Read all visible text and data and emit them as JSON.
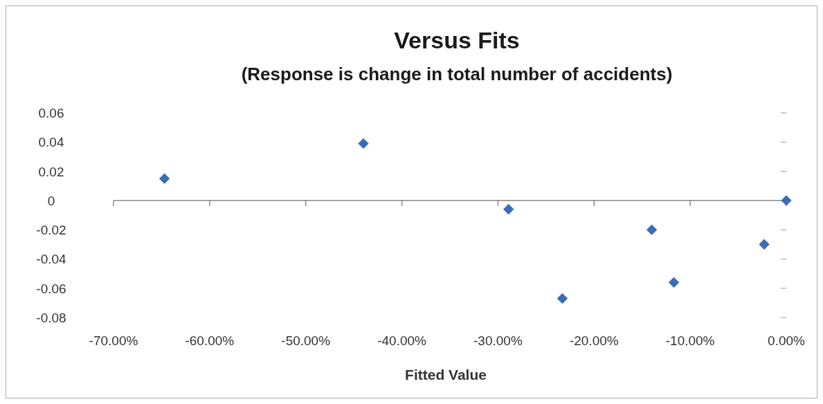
{
  "chart_data": {
    "type": "scatter",
    "title": "Versus Fits",
    "subtitle": "(Response is change in total number of accidents)",
    "xlabel": "Fitted Value",
    "x": [
      -64.7,
      -44.0,
      -28.9,
      -23.3,
      -14.0,
      -11.7,
      -2.3,
      0
    ],
    "series": [
      {
        "color": "#3d6cb6",
        "values": [
          0.015,
          0.039,
          -0.006,
          -0.067,
          -0.02,
          -0.056,
          -0.03,
          0
        ]
      }
    ],
    "marker": "diamond",
    "xlim": [
      -70,
      0
    ],
    "xticks": [
      {
        "value": -70,
        "label": "-70.00%"
      },
      {
        "value": -60,
        "label": "-60.00%"
      },
      {
        "value": -50,
        "label": "-50.00%"
      },
      {
        "value": -40,
        "label": "-40.00%"
      },
      {
        "value": -30,
        "label": "-30.00%"
      },
      {
        "value": -20,
        "label": "-20.00%"
      },
      {
        "value": -10,
        "label": "-10.00%"
      },
      {
        "value": 0,
        "label": "0.00%"
      }
    ],
    "ylim": [
      -0.08,
      0.06
    ],
    "yticks": [
      {
        "value": -0.08,
        "label": "-0.08"
      },
      {
        "value": -0.06,
        "label": "-0.06"
      },
      {
        "value": -0.04,
        "label": "-0.04"
      },
      {
        "value": -0.02,
        "label": "-0.02"
      },
      0,
      {
        "value": 0.02,
        "label": "0.02"
      },
      {
        "value": 0.04,
        "label": "0.04"
      },
      {
        "value": 0.06,
        "label": "0.06"
      }
    ]
  }
}
